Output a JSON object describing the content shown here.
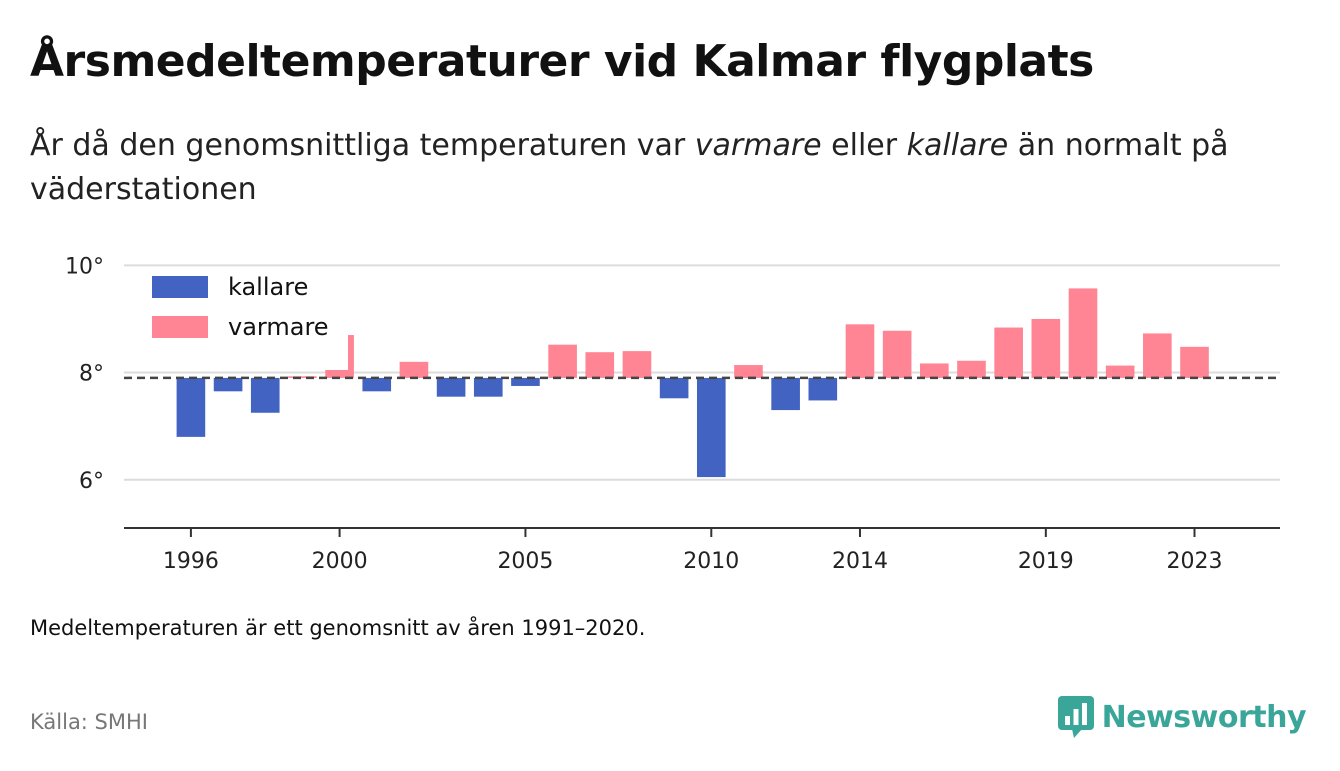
{
  "title": "Årsmedeltemperaturer vid Kalmar flygplats",
  "subtitle": {
    "part1": "År då den genomsnittliga temperaturen var ",
    "warm": "varmare",
    "part2": " eller ",
    "cold": "kallare",
    "part3": " än normalt på väderstationen"
  },
  "note": "Medeltemperaturen är ett genomsnitt av åren 1991–2020.",
  "source": "Källa: SMHI",
  "brand": {
    "name": "Newsworthy",
    "icon": "bar-chart-icon",
    "color": "#3aa69a"
  },
  "chart_data": {
    "type": "bar",
    "title": "",
    "xlabel": "",
    "ylabel": "",
    "ylim": [
      5.1,
      10.1
    ],
    "xlim": [
      1994.2,
      2025.3
    ],
    "baseline": 7.9,
    "y_ticks": [
      {
        "value": 6,
        "label": "6°"
      },
      {
        "value": 8,
        "label": "8°"
      },
      {
        "value": 10,
        "label": "10°"
      }
    ],
    "x_ticks": [
      1996,
      2000,
      2005,
      2010,
      2014,
      2019,
      2023
    ],
    "grid": "horizontal",
    "legend_position": "top-left",
    "legend": [
      {
        "label": "kallare",
        "color": "#4263c1"
      },
      {
        "label": "varmare",
        "color": "#ff8594"
      }
    ],
    "colors": {
      "kallare": "#4263c1",
      "varmare": "#ff8594"
    },
    "years": [
      1996,
      1997,
      1998,
      1999,
      2000,
      2001,
      2002,
      2003,
      2004,
      2005,
      2006,
      2007,
      2008,
      2009,
      2010,
      2011,
      2012,
      2013,
      2014,
      2015,
      2016,
      2017,
      2018,
      2019,
      2020,
      2021,
      2022,
      2023
    ],
    "values": [
      6.8,
      7.65,
      7.25,
      7.93,
      8.7,
      7.65,
      8.2,
      7.55,
      7.55,
      7.75,
      8.52,
      8.38,
      8.4,
      7.52,
      6.05,
      8.14,
      7.3,
      7.48,
      8.9,
      8.78,
      8.17,
      8.22,
      8.84,
      9.0,
      9.57,
      8.13,
      8.73,
      8.48
    ]
  }
}
